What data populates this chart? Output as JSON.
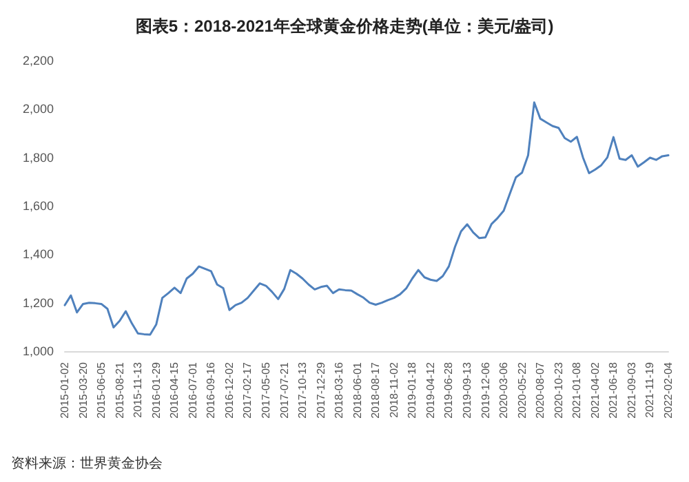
{
  "chart_data": {
    "type": "line",
    "title": "图表5：2018-2021年全球黄金价格走势(单位：美元/盎司)",
    "categories": [
      "2015-01-02",
      null,
      null,
      "2015-03-20",
      null,
      null,
      "2015-06-05",
      null,
      null,
      "2015-08-21",
      null,
      null,
      "2015-11-13",
      null,
      null,
      "2016-01-29",
      null,
      null,
      "2016-04-15",
      null,
      null,
      "2016-07-01",
      null,
      null,
      "2016-09-16",
      null,
      null,
      "2016-12-02",
      null,
      null,
      "2017-02-17",
      null,
      null,
      "2017-05-05",
      null,
      null,
      "2017-07-21",
      null,
      null,
      "2017-10-13",
      null,
      null,
      "2017-12-29",
      null,
      null,
      "2018-03-16",
      null,
      null,
      "2018-06-01",
      null,
      null,
      "2018-08-17",
      null,
      null,
      "2018-11-02",
      null,
      null,
      "2019-01-18",
      null,
      null,
      "2019-04-12",
      null,
      null,
      "2019-06-28",
      null,
      null,
      "2019-09-13",
      null,
      null,
      "2019-12-06",
      null,
      null,
      "2020-03-06",
      null,
      null,
      "2020-05-22",
      null,
      null,
      "2020-08-07",
      null,
      null,
      "2020-10-23",
      null,
      null,
      "2021-01-08",
      null,
      null,
      "2021-04-02",
      null,
      null,
      "2021-06-18",
      null,
      null,
      "2021-09-03",
      null,
      null,
      "2021-11-19",
      null,
      null,
      "2022-02-04"
    ],
    "series": [
      {
        "color": "#4f81bd",
        "values": [
          1190,
          1230,
          1160,
          1195,
          1200,
          1198,
          1195,
          1175,
          1098,
          1125,
          1165,
          1115,
          1073,
          1070,
          1068,
          1110,
          1220,
          1240,
          1262,
          1240,
          1300,
          1320,
          1350,
          1340,
          1330,
          1275,
          1260,
          1170,
          1190,
          1200,
          1220,
          1250,
          1280,
          1270,
          1245,
          1215,
          1257,
          1335,
          1320,
          1300,
          1275,
          1255,
          1265,
          1270,
          1240,
          1255,
          1252,
          1250,
          1235,
          1221,
          1200,
          1192,
          1200,
          1211,
          1220,
          1235,
          1259,
          1300,
          1335,
          1305,
          1295,
          1290,
          1310,
          1350,
          1430,
          1495,
          1524,
          1490,
          1467,
          1470,
          1525,
          1550,
          1580,
          1650,
          1718,
          1737,
          1809,
          2027,
          1960,
          1945,
          1930,
          1922,
          1880,
          1865,
          1885,
          1800,
          1735,
          1750,
          1768,
          1800,
          1884,
          1795,
          1790,
          1809,
          1762,
          1780,
          1799,
          1790,
          1805,
          1809
        ]
      }
    ],
    "ylim": [
      1000,
      2200
    ],
    "yticks": [
      {
        "value": 1000,
        "label": "1,000"
      },
      {
        "value": 1200,
        "label": "1,200"
      },
      {
        "value": 1400,
        "label": "1,400"
      },
      {
        "value": 1600,
        "label": "1,600"
      },
      {
        "value": 1800,
        "label": "1,800"
      },
      {
        "value": 2000,
        "label": "2,000"
      },
      {
        "value": 2200,
        "label": "2,200"
      }
    ],
    "grid": false,
    "marker": "none",
    "line_style": "solid",
    "annotations": [
      "资料来源：世界黄金协会"
    ]
  }
}
